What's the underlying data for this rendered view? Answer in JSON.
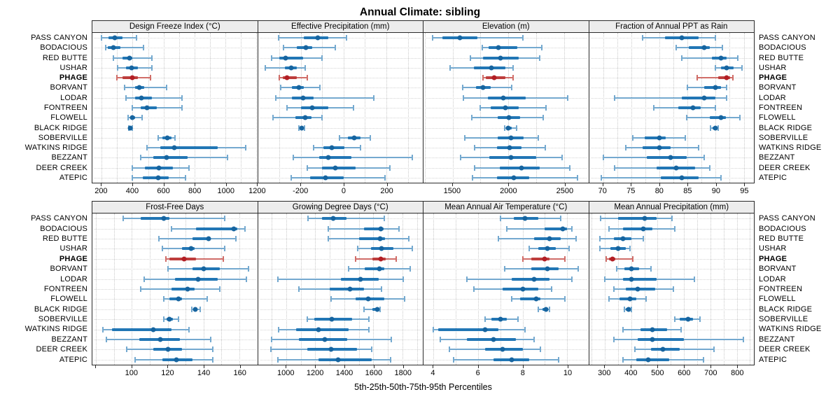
{
  "title": "Annual Climate: sibling",
  "xlabel": "5th-25th-50th-75th-95th Percentiles",
  "highlight_site": "PHAGE",
  "colors": {
    "blue_dot": "#16649f",
    "blue_iqr": "#2176b5",
    "blue_range": "#74a9cf",
    "red_dot": "#b21e24",
    "red_iqr": "#bd3d3c",
    "red_range": "#d06d68",
    "strip_bg": "#ededed",
    "panel_border": "#2a2a2a",
    "grid": "#c9c9c9"
  },
  "sites": [
    "PASS CANYON",
    "BODACIOUS",
    "RED BUTTE",
    "USHAR",
    "PHAGE",
    "BORVANT",
    "LODAR",
    "FONTREEN",
    "FLOWELL",
    "BLACK RIDGE",
    "SOBERVILLE",
    "WATKINS RIDGE",
    "BEZZANT",
    "DEER CREEK",
    "ATEPIC"
  ],
  "chart_data": {
    "type": "percentile-dotplot",
    "percentile_labels": [
      "5th",
      "25th",
      "50th",
      "75th",
      "95th"
    ],
    "legend_note": "values per site are [p5,p25,p50,p75,p95]",
    "panels": [
      {
        "title": "Design Freeze Index (°C)",
        "row": 0,
        "domain": [
          140,
          1205
        ],
        "ticks": [
          200,
          400,
          600,
          800,
          1000,
          1200
        ],
        "tick_labels": [
          "200",
          "400",
          "600",
          "800",
          "1000",
          "1200"
        ],
        "grid": [
          200,
          300,
          400,
          500,
          600,
          700,
          800,
          900,
          1000,
          1100,
          1200
        ],
        "values": [
          [
            200,
            245,
            285,
            335,
            425
          ],
          [
            225,
            240,
            275,
            320,
            470
          ],
          [
            275,
            335,
            380,
            400,
            525
          ],
          [
            305,
            355,
            395,
            435,
            525
          ],
          [
            300,
            335,
            400,
            435,
            515
          ],
          [
            350,
            415,
            445,
            475,
            620
          ],
          [
            355,
            415,
            455,
            525,
            720
          ],
          [
            400,
            450,
            495,
            555,
            720
          ],
          [
            370,
            382,
            397,
            415,
            460
          ],
          [
            373,
            380,
            385,
            390,
            397
          ],
          [
            565,
            590,
            625,
            650,
            675
          ],
          [
            495,
            580,
            670,
            950,
            1130
          ],
          [
            450,
            535,
            620,
            755,
            1015
          ],
          [
            400,
            480,
            570,
            660,
            765
          ],
          [
            400,
            465,
            565,
            635,
            740
          ]
        ]
      },
      {
        "title": "Effective Precipitation (mm)",
        "row": 0,
        "domain": [
          -400,
          370
        ],
        "ticks": [
          -200,
          0,
          200
        ],
        "tick_labels": [
          "-200",
          "0",
          "200"
        ],
        "grid": [
          -300,
          -200,
          -100,
          0,
          100,
          200,
          300
        ],
        "values": [
          [
            -305,
            -185,
            -120,
            -70,
            15
          ],
          [
            -280,
            -220,
            -175,
            -145,
            -40
          ],
          [
            -335,
            -300,
            -270,
            -190,
            -100
          ],
          [
            -365,
            -275,
            -245,
            -220,
            -180
          ],
          [
            -300,
            -285,
            -265,
            -220,
            -170
          ],
          [
            -295,
            -240,
            -210,
            -185,
            -110
          ],
          [
            -315,
            -240,
            -190,
            -140,
            140
          ],
          [
            -265,
            -200,
            -145,
            -70,
            45
          ],
          [
            -330,
            -225,
            -180,
            -150,
            -100
          ],
          [
            -210,
            -203,
            -196,
            -189,
            -183
          ],
          [
            -20,
            20,
            50,
            80,
            125
          ],
          [
            -140,
            -95,
            -55,
            5,
            80
          ],
          [
            -235,
            -115,
            -70,
            35,
            320
          ],
          [
            -170,
            -100,
            -40,
            55,
            215
          ],
          [
            -245,
            -155,
            -85,
            0,
            195
          ]
        ]
      },
      {
        "title": "Elevation (m)",
        "row": 0,
        "domain": [
          1240,
          2715
        ],
        "ticks": [
          1500,
          2000,
          2500
        ],
        "tick_labels": [
          "1500",
          "2000",
          "2500"
        ],
        "grid": [
          1250,
          1500,
          1750,
          2000,
          2250,
          2500
        ],
        "values": [
          [
            1320,
            1410,
            1565,
            1725,
            2130
          ],
          [
            1765,
            1820,
            1910,
            2080,
            2300
          ],
          [
            1660,
            1770,
            1930,
            2090,
            2280
          ],
          [
            1480,
            1690,
            1845,
            1975,
            2040
          ],
          [
            1775,
            1795,
            1875,
            1975,
            2040
          ],
          [
            1590,
            1710,
            1775,
            1840,
            2030
          ],
          [
            1600,
            1815,
            1955,
            2155,
            2530
          ],
          [
            1745,
            1840,
            1975,
            2090,
            2335
          ],
          [
            1675,
            1905,
            2005,
            2105,
            2310
          ],
          [
            1965,
            1978,
            1995,
            2030,
            2070
          ],
          [
            1610,
            1905,
            2025,
            2135,
            2265
          ],
          [
            1700,
            1895,
            2010,
            2115,
            2330
          ],
          [
            1570,
            1830,
            2025,
            2250,
            2480
          ],
          [
            1700,
            1925,
            2115,
            2280,
            2550
          ],
          [
            1680,
            1900,
            2050,
            2185,
            2620
          ]
        ]
      },
      {
        "title": "Fraction of Annual PPT as Rain",
        "row": 0,
        "domain": [
          67.5,
          96.8
        ],
        "ticks": [
          70,
          75,
          80,
          85,
          90,
          95
        ],
        "tick_labels": [
          "70",
          "75",
          "80",
          "85",
          "90",
          "95"
        ],
        "grid": [
          70,
          72.5,
          75,
          77.5,
          80,
          82.5,
          85,
          87.5,
          90,
          92.5,
          95
        ],
        "values": [
          [
            77,
            81,
            84,
            87,
            90
          ],
          [
            83,
            85.2,
            88,
            89,
            91.2
          ],
          [
            84,
            89.3,
            91,
            92,
            94
          ],
          [
            90,
            91,
            92,
            93.2,
            94.7
          ],
          [
            86.7,
            90.4,
            92,
            92.6,
            93.1
          ],
          [
            85,
            88,
            90,
            91,
            92
          ],
          [
            72,
            84,
            88,
            90,
            92
          ],
          [
            79,
            83.4,
            86,
            87.3,
            90
          ],
          [
            84.8,
            89,
            91,
            91.8,
            94.3
          ],
          [
            89.1,
            89.5,
            90,
            90.2,
            90.4
          ],
          [
            75.3,
            77.4,
            80,
            81.1,
            84.6
          ],
          [
            74,
            77,
            80,
            82,
            87
          ],
          [
            70,
            77.8,
            82,
            84.8,
            88
          ],
          [
            72,
            79.5,
            83,
            86.4,
            89
          ],
          [
            69.7,
            80.3,
            84,
            87,
            91
          ]
        ]
      },
      {
        "title": "Frost-Free Days",
        "row": 1,
        "domain": [
          78,
          170
        ],
        "ticks": [
          80,
          100,
          120,
          140,
          160
        ],
        "tick_labels": [
          "",
          "100",
          "120",
          "140",
          "160"
        ],
        "grid": [
          80,
          90,
          100,
          110,
          120,
          130,
          140,
          150,
          160
        ],
        "values": [
          [
            95,
            105,
            118,
            121,
            152
          ],
          [
            122,
            136,
            157,
            159,
            163
          ],
          [
            115,
            134,
            143,
            144,
            158
          ],
          [
            117,
            128,
            133,
            135,
            152
          ],
          [
            119,
            121,
            129,
            136,
            151
          ],
          [
            120,
            134,
            140,
            149,
            165
          ],
          [
            107,
            124,
            137,
            148,
            164
          ],
          [
            105,
            122,
            131,
            135,
            149
          ],
          [
            118,
            121,
            126,
            128,
            142
          ],
          [
            133.5,
            134.5,
            135.5,
            136.5,
            138
          ],
          [
            118,
            119.5,
            121,
            123,
            126
          ],
          [
            84,
            89,
            112,
            122,
            132
          ],
          [
            86,
            104,
            116,
            127,
            144
          ],
          [
            97,
            112,
            120,
            128,
            145
          ],
          [
            102,
            117,
            125,
            134,
            145
          ]
        ]
      },
      {
        "title": "Growing Degree Days (°C)",
        "row": 1,
        "domain": [
          805,
          1940
        ],
        "ticks": [
          1000,
          1200,
          1400,
          1600,
          1800
        ],
        "tick_labels": [
          "1000",
          "1200",
          "1400",
          "1600",
          "1800"
        ],
        "grid": [
          900,
          1000,
          1100,
          1200,
          1300,
          1400,
          1500,
          1600,
          1700,
          1800,
          1900
        ],
        "values": [
          [
            1150,
            1245,
            1325,
            1415,
            1675
          ],
          [
            1290,
            1535,
            1650,
            1670,
            1775
          ],
          [
            1290,
            1500,
            1645,
            1680,
            1845
          ],
          [
            1490,
            1585,
            1655,
            1740,
            1870
          ],
          [
            1475,
            1595,
            1650,
            1685,
            1755
          ],
          [
            1430,
            1540,
            1640,
            1675,
            1855
          ],
          [
            940,
            1375,
            1510,
            1635,
            1805
          ],
          [
            1085,
            1300,
            1440,
            1535,
            1655
          ],
          [
            1310,
            1475,
            1565,
            1675,
            1815
          ],
          [
            1535,
            1595,
            1625,
            1635,
            1645
          ],
          [
            1145,
            1195,
            1315,
            1455,
            1570
          ],
          [
            945,
            1070,
            1220,
            1430,
            1570
          ],
          [
            900,
            1085,
            1265,
            1420,
            1725
          ],
          [
            895,
            1145,
            1310,
            1485,
            1590
          ],
          [
            940,
            1220,
            1355,
            1590,
            1720
          ]
        ]
      },
      {
        "title": "Mean Annual Air Temperature (°C)",
        "row": 1,
        "domain": [
          3.55,
          10.95
        ],
        "ticks": [
          4,
          6,
          8,
          10
        ],
        "tick_labels": [
          "4",
          "6",
          "8",
          "10"
        ],
        "grid": [
          4,
          5,
          6,
          7,
          8,
          9,
          10
        ],
        "values": [
          [
            7.0,
            7.6,
            8.1,
            8.7,
            9.7
          ],
          [
            7.3,
            9.0,
            9.8,
            10.0,
            10.2
          ],
          [
            6.9,
            8.5,
            9.2,
            9.7,
            10.4
          ],
          [
            8.3,
            8.7,
            9.1,
            9.5,
            10.1
          ],
          [
            8.0,
            8.4,
            9.0,
            9.2,
            9.9
          ],
          [
            7.2,
            8.4,
            9.1,
            9.6,
            10.5
          ],
          [
            5.5,
            7.5,
            8.5,
            9.2,
            10.2
          ],
          [
            5.8,
            7.1,
            8.0,
            8.7,
            9.3
          ],
          [
            7.5,
            7.9,
            8.6,
            8.8,
            9.9
          ],
          [
            8.7,
            8.9,
            9.05,
            9.15,
            9.2
          ],
          [
            6.3,
            6.6,
            7.0,
            7.3,
            7.8
          ],
          [
            4.0,
            4.2,
            6.3,
            6.9,
            8.1
          ],
          [
            4.3,
            5.5,
            6.7,
            7.7,
            8.5
          ],
          [
            4.7,
            6.3,
            7.1,
            8.0,
            8.8
          ],
          [
            4.9,
            6.7,
            7.5,
            8.3,
            9.6
          ]
        ]
      },
      {
        "title": "Mean Annual Precipitation (mm)",
        "row": 1,
        "domain": [
          240,
          865
        ],
        "ticks": [
          300,
          400,
          500,
          600,
          700,
          800
        ],
        "tick_labels": [
          "300",
          "400",
          "500",
          "600",
          "700",
          "800"
        ],
        "grid": [
          250,
          300,
          350,
          400,
          450,
          500,
          550,
          600,
          650,
          700,
          750,
          800,
          850
        ],
        "values": [
          [
            285,
            350,
            450,
            495,
            555
          ],
          [
            315,
            370,
            445,
            480,
            565
          ],
          [
            280,
            335,
            370,
            400,
            445
          ],
          [
            280,
            320,
            350,
            380,
            395
          ],
          [
            305,
            315,
            330,
            340,
            405
          ],
          [
            345,
            375,
            400,
            430,
            475
          ],
          [
            300,
            370,
            400,
            495,
            640
          ],
          [
            335,
            380,
            425,
            490,
            560
          ],
          [
            315,
            355,
            395,
            420,
            455
          ],
          [
            375,
            380,
            390,
            395,
            400
          ],
          [
            565,
            585,
            615,
            635,
            660
          ],
          [
            370,
            435,
            480,
            535,
            590
          ],
          [
            335,
            425,
            480,
            600,
            825
          ],
          [
            415,
            475,
            520,
            585,
            715
          ],
          [
            370,
            420,
            465,
            545,
            675
          ]
        ]
      }
    ]
  }
}
